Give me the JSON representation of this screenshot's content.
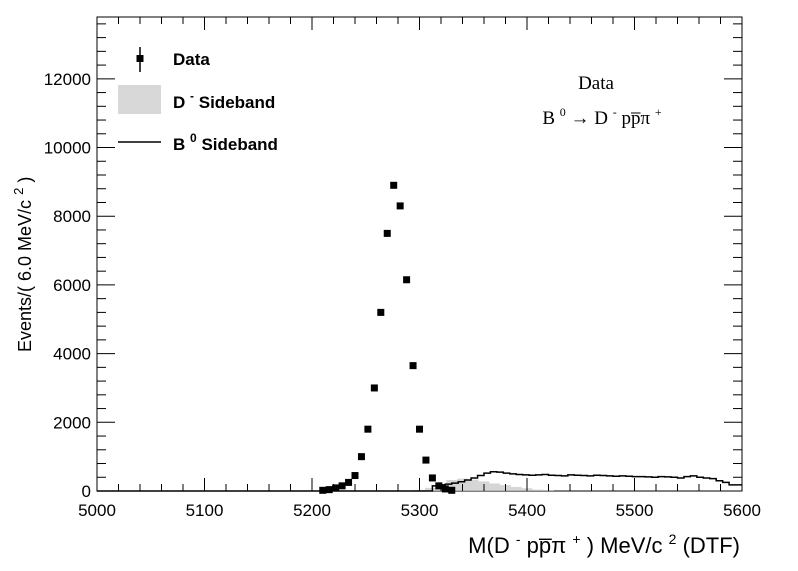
{
  "chart_data": {
    "type": "scatter",
    "title": "",
    "xlabel": "M(D⁻ p p̅ π⁺) MeV/c² (DTF)",
    "ylabel": "Events/( 6.0 MeV/c²)",
    "xlabel_parts": {
      "a": "M(D",
      "b": "-",
      "c": "pp̅π",
      "d": "+",
      "e": ") MeV/c",
      "f": "2",
      "g": " (DTF)"
    },
    "ylabel_parts": {
      "a": "Events/( 6.0 MeV/c",
      "b": "2",
      "c": ")"
    },
    "xlim": [
      5000,
      5600
    ],
    "ylim": [
      0,
      13800
    ],
    "x_ticks": [
      5000,
      5100,
      5200,
      5300,
      5400,
      5500,
      5600
    ],
    "y_ticks": [
      0,
      2000,
      4000,
      6000,
      8000,
      10000,
      12000
    ],
    "x_tick_labels": [
      "5000",
      "5100",
      "5200",
      "5300",
      "5400",
      "5500",
      "5600"
    ],
    "y_tick_labels": [
      "0",
      "2000",
      "4000",
      "6000",
      "8000",
      "10000",
      "12000"
    ],
    "legend_placement": "top-left",
    "legend": {
      "data": "Data",
      "dsb_a": "D",
      "dsb_sup": "-",
      "dsb_b": " Sideband",
      "bsb_a": "B",
      "bsb_sup": "0",
      "bsb_b": " Sideband"
    },
    "annotation": {
      "line1": "Data",
      "b": "B",
      "b_sup": "0",
      "arrow": "→ D",
      "d_sup": "-",
      "mid": "pp̅π",
      "pi_sup": "+"
    },
    "colors": {
      "data": "#000000",
      "d_sideband_fill": "#c8c8c8",
      "b_sideband_line": "#000000"
    },
    "series": [
      {
        "name": "Data",
        "kind": "points",
        "x": [
          5210,
          5216,
          5222,
          5228,
          5234,
          5240,
          5246,
          5252,
          5258,
          5264,
          5270,
          5276,
          5282,
          5288,
          5294,
          5300,
          5306,
          5312,
          5318,
          5324,
          5330
        ],
        "y": [
          20,
          40,
          90,
          150,
          250,
          450,
          1000,
          1800,
          3000,
          5200,
          7500,
          8900,
          8300,
          6150,
          3650,
          1800,
          900,
          380,
          150,
          60,
          20
        ]
      },
      {
        "name": "D- Sideband",
        "kind": "filled-histogram",
        "x": [
          5300,
          5310,
          5320,
          5330,
          5340,
          5350,
          5360,
          5370,
          5380,
          5390,
          5400,
          5410,
          5420
        ],
        "y": [
          30,
          90,
          200,
          320,
          360,
          330,
          280,
          220,
          170,
          120,
          80,
          40,
          10
        ]
      },
      {
        "name": "B0 Sideband",
        "kind": "step-line",
        "bin_width": 6,
        "x": [
          5315,
          5321,
          5327,
          5333,
          5339,
          5345,
          5351,
          5357,
          5363,
          5369,
          5375,
          5381,
          5387,
          5393,
          5399,
          5405,
          5411,
          5417,
          5423,
          5429,
          5435,
          5441,
          5447,
          5453,
          5459,
          5465,
          5471,
          5477,
          5483,
          5489,
          5495,
          5501,
          5507,
          5513,
          5519,
          5525,
          5531,
          5537,
          5543,
          5549,
          5555,
          5561,
          5567,
          5573,
          5579,
          5585,
          5591
        ],
        "y": [
          150,
          180,
          200,
          230,
          270,
          320,
          380,
          450,
          520,
          560,
          550,
          520,
          500,
          480,
          470,
          460,
          470,
          480,
          460,
          450,
          440,
          470,
          460,
          450,
          440,
          460,
          450,
          440,
          430,
          440,
          430,
          420,
          420,
          410,
          400,
          420,
          410,
          400,
          380,
          420,
          440,
          400,
          380,
          360,
          300,
          250,
          180
        ]
      }
    ]
  }
}
